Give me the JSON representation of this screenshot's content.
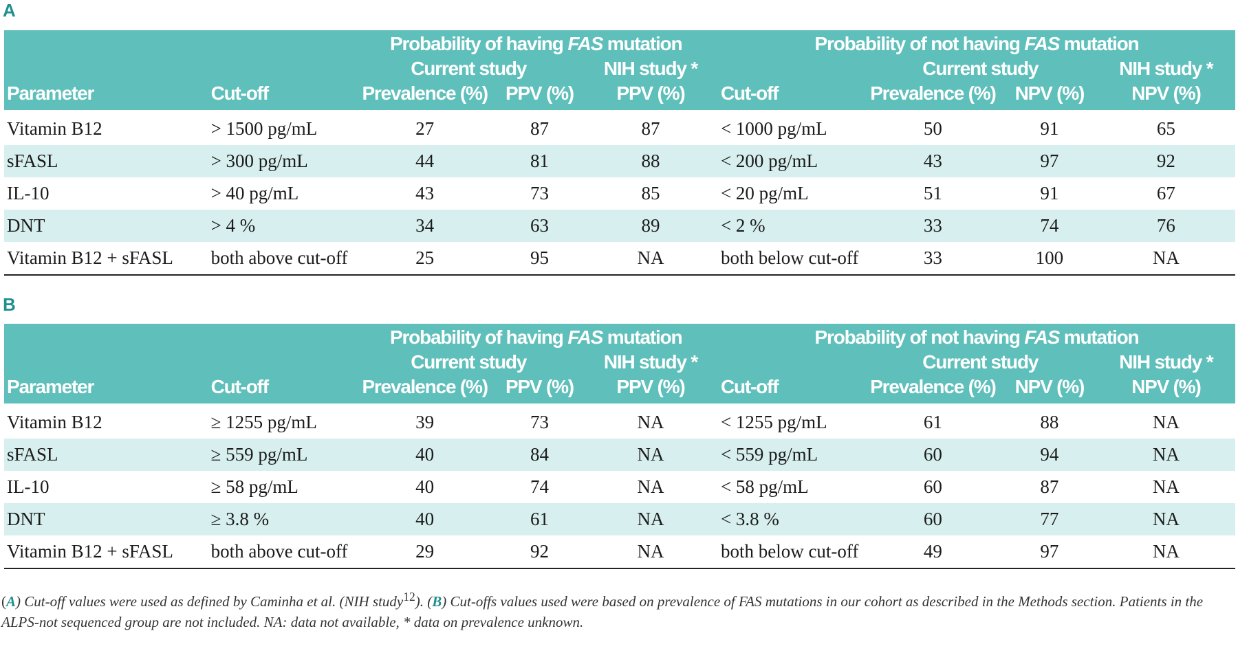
{
  "section_a": {
    "label": "A"
  },
  "section_b": {
    "label": "B"
  },
  "headers": {
    "having_prefix": "Probability of ",
    "having_word": "having",
    "not_prefix": "Probability of ",
    "not_word": "not having",
    "gene": "FAS",
    "mutation": " mutation",
    "current_study": "Current study",
    "nih_study": "NIH study *",
    "parameter": "Parameter",
    "cutoff": "Cut-off",
    "prevalence": "Prevalence (%)",
    "ppv": "PPV (%)",
    "npv": "NPV (%)"
  },
  "table_a": {
    "rows": [
      [
        "Vitamin B12",
        "> 1500 pg/mL",
        "27",
        "87",
        "87",
        "< 1000 pg/mL",
        "50",
        "91",
        "65"
      ],
      [
        "sFASL",
        "> 300 pg/mL",
        "44",
        "81",
        "88",
        "< 200 pg/mL",
        "43",
        "97",
        "92"
      ],
      [
        "IL-10",
        "> 40 pg/mL",
        "43",
        "73",
        "85",
        "< 20 pg/mL",
        "51",
        "91",
        "67"
      ],
      [
        "DNT",
        "> 4 %",
        "34",
        "63",
        "89",
        "< 2 %",
        "33",
        "74",
        "76"
      ],
      [
        "Vitamin B12 + sFASL",
        "both above cut-off",
        "25",
        "95",
        "NA",
        "both below cut-off",
        "33",
        "100",
        "NA"
      ]
    ]
  },
  "table_b": {
    "rows": [
      [
        "Vitamin B12",
        "≥ 1255 pg/mL",
        "39",
        "73",
        "NA",
        "< 1255 pg/mL",
        "61",
        "88",
        "NA"
      ],
      [
        "sFASL",
        "≥ 559 pg/mL",
        "40",
        "84",
        "NA",
        "< 559 pg/mL",
        "60",
        "94",
        "NA"
      ],
      [
        "IL-10",
        "≥ 58 pg/mL",
        "40",
        "74",
        "NA",
        "< 58 pg/mL",
        "60",
        "87",
        "NA"
      ],
      [
        "DNT",
        "≥ 3.8 %",
        "40",
        "61",
        "NA",
        "< 3.8 %",
        "60",
        "77",
        "NA"
      ],
      [
        "Vitamin B12 + sFASL",
        "both above cut-off",
        "29",
        "92",
        "NA",
        "both below cut-off",
        "49",
        "97",
        "NA"
      ]
    ]
  },
  "footnote": {
    "open_a": "(",
    "a": "A",
    "part1": ") Cut-off values were used as defined by Caminha et al. (NIH study",
    "ref": "12",
    "part2": "). (",
    "b": "B",
    "part3": ") Cut-offs values used were based on prevalence of FAS mutations in our cohort as described in the Methods section. Patients in the ALPS-not sequenced group are not included. NA: data not available, * data on prevalence unknown."
  }
}
